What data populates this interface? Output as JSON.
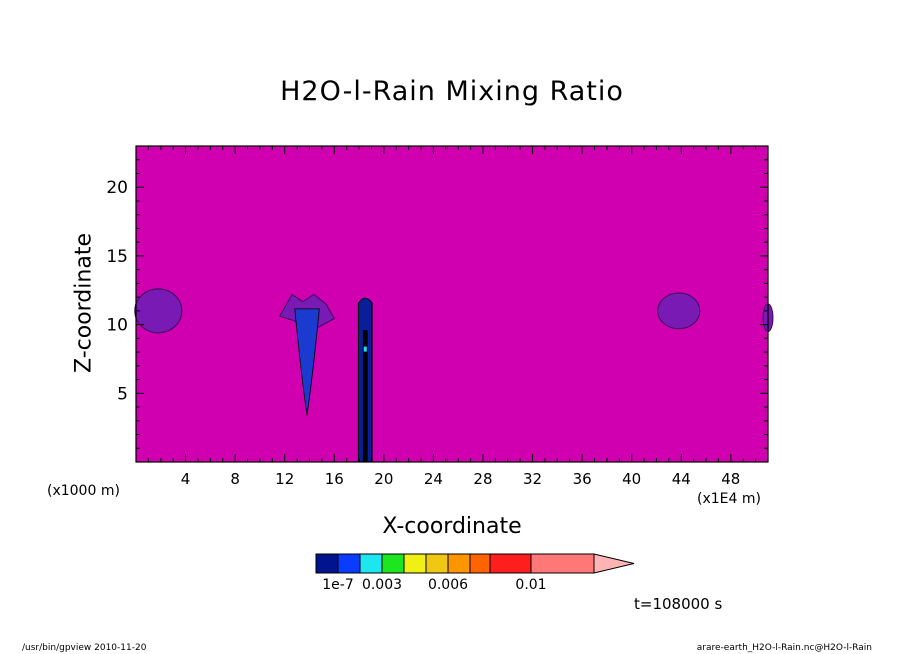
{
  "chart_data": {
    "type": "heatmap",
    "title": "H2O-l-Rain Mixing Ratio",
    "xlabel": "X-coordinate",
    "ylabel": "Z-coordinate",
    "x_unit_note": "(x1E4 m)",
    "y_unit_note": "(x1000 m)",
    "xlim": [
      0,
      51
    ],
    "ylim": [
      0,
      23
    ],
    "x_ticks": [
      4,
      8,
      12,
      16,
      20,
      24,
      28,
      32,
      36,
      40,
      44,
      48
    ],
    "y_ticks": [
      5,
      10,
      15,
      20
    ],
    "background_color": "#d000b0",
    "features": [
      {
        "kind": "blob",
        "x": 1.8,
        "z": 11.0,
        "rx": 1.9,
        "rz": 1.6,
        "color": "#7a1ab4"
      },
      {
        "kind": "blob",
        "x": 43.8,
        "z": 11.0,
        "rx": 1.7,
        "rz": 1.3,
        "color": "#7a1ab4"
      },
      {
        "kind": "blob",
        "x": 51.0,
        "z": 10.5,
        "rx": 0.4,
        "rz": 1.0,
        "color": "#7a1ab4"
      },
      {
        "kind": "plume",
        "x": 13.8,
        "z_top": 12.2,
        "z_bottom": 3.4,
        "color": "#7a1ab4",
        "core_color": "#1a3ad0"
      },
      {
        "kind": "column",
        "x": 18.5,
        "z_top": 12.0,
        "z_bottom": 0,
        "color": "#0a1e9a",
        "core_color": "#000000"
      }
    ],
    "colorbar": {
      "colors": [
        "#001490",
        "#0a3cff",
        "#1ee6f0",
        "#1ee61e",
        "#f0f014",
        "#f0c814",
        "#ff9600",
        "#ff6400",
        "#ff1e1e",
        "#ff7878"
      ],
      "extend_color": "#ffb4b4",
      "tick_labels": [
        {
          "label": "1e-7",
          "index": 1
        },
        {
          "label": "0.003",
          "index": 3
        },
        {
          "label": "0.006",
          "index": 6
        },
        {
          "label": "0.01",
          "index": 9
        }
      ]
    },
    "time_label": "t=108000 s"
  },
  "footer": {
    "left": "/usr/bin/gpview   2010-11-20",
    "right": "arare-earth_H2O-l-Rain.nc@H2O-l-Rain"
  }
}
